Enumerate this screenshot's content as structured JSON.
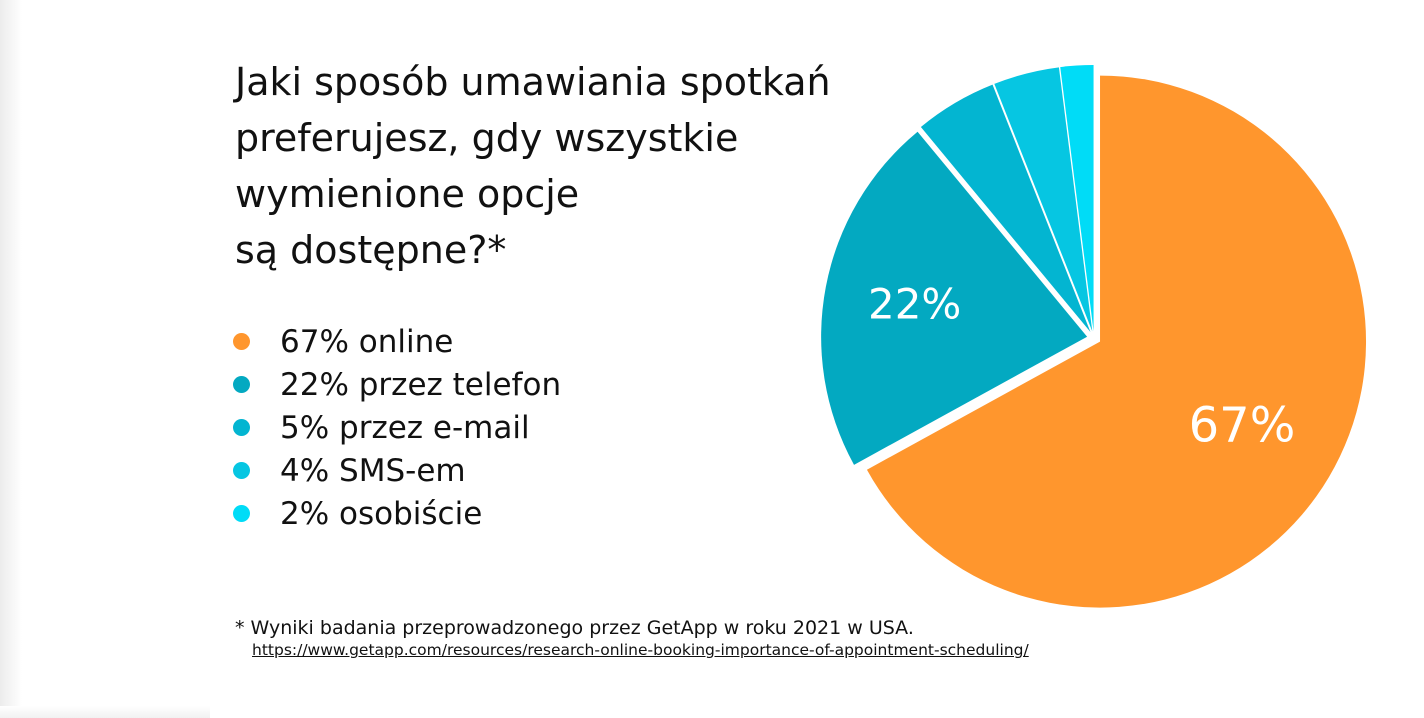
{
  "title_lines": [
    "Jaki sposób umawiania spotkań",
    "preferujesz, gdy wszystkie",
    "wymienione opcje",
    "są dostępne?*"
  ],
  "legend": [
    {
      "text": "67% online",
      "color": "#ff962d"
    },
    {
      "text": "22% przez telefon",
      "color": "#03a9c1"
    },
    {
      "text": "5% przez e-mail",
      "color": "#03b5d1"
    },
    {
      "text": "4% SMS-em",
      "color": "#06c6e2"
    },
    {
      "text": "2% osobiście",
      "color": "#00dcf7"
    }
  ],
  "chart_data": {
    "type": "pie",
    "categories": [
      "online",
      "przez telefon",
      "przez e-mail",
      "SMS-em",
      "osobiście"
    ],
    "values": [
      67,
      22,
      5,
      4,
      2
    ],
    "labels": [
      "67%",
      "22%",
      "",
      "",
      ""
    ],
    "colors": [
      "#ff962d",
      "#03a9c1",
      "#03b5d1",
      "#06c6e2",
      "#00dcf7"
    ],
    "exploded": true,
    "title": "Jaki sposób umawiania spotkań preferujesz, gdy wszystkie wymienione opcje są dostępne?*"
  },
  "footnote": "* Wyniki badania przeprowadzonego przez GetApp w roku 2021 w USA.",
  "source_url": "https://www.getapp.com/resources/research-online-booking-importance-of-appointment-scheduling/"
}
